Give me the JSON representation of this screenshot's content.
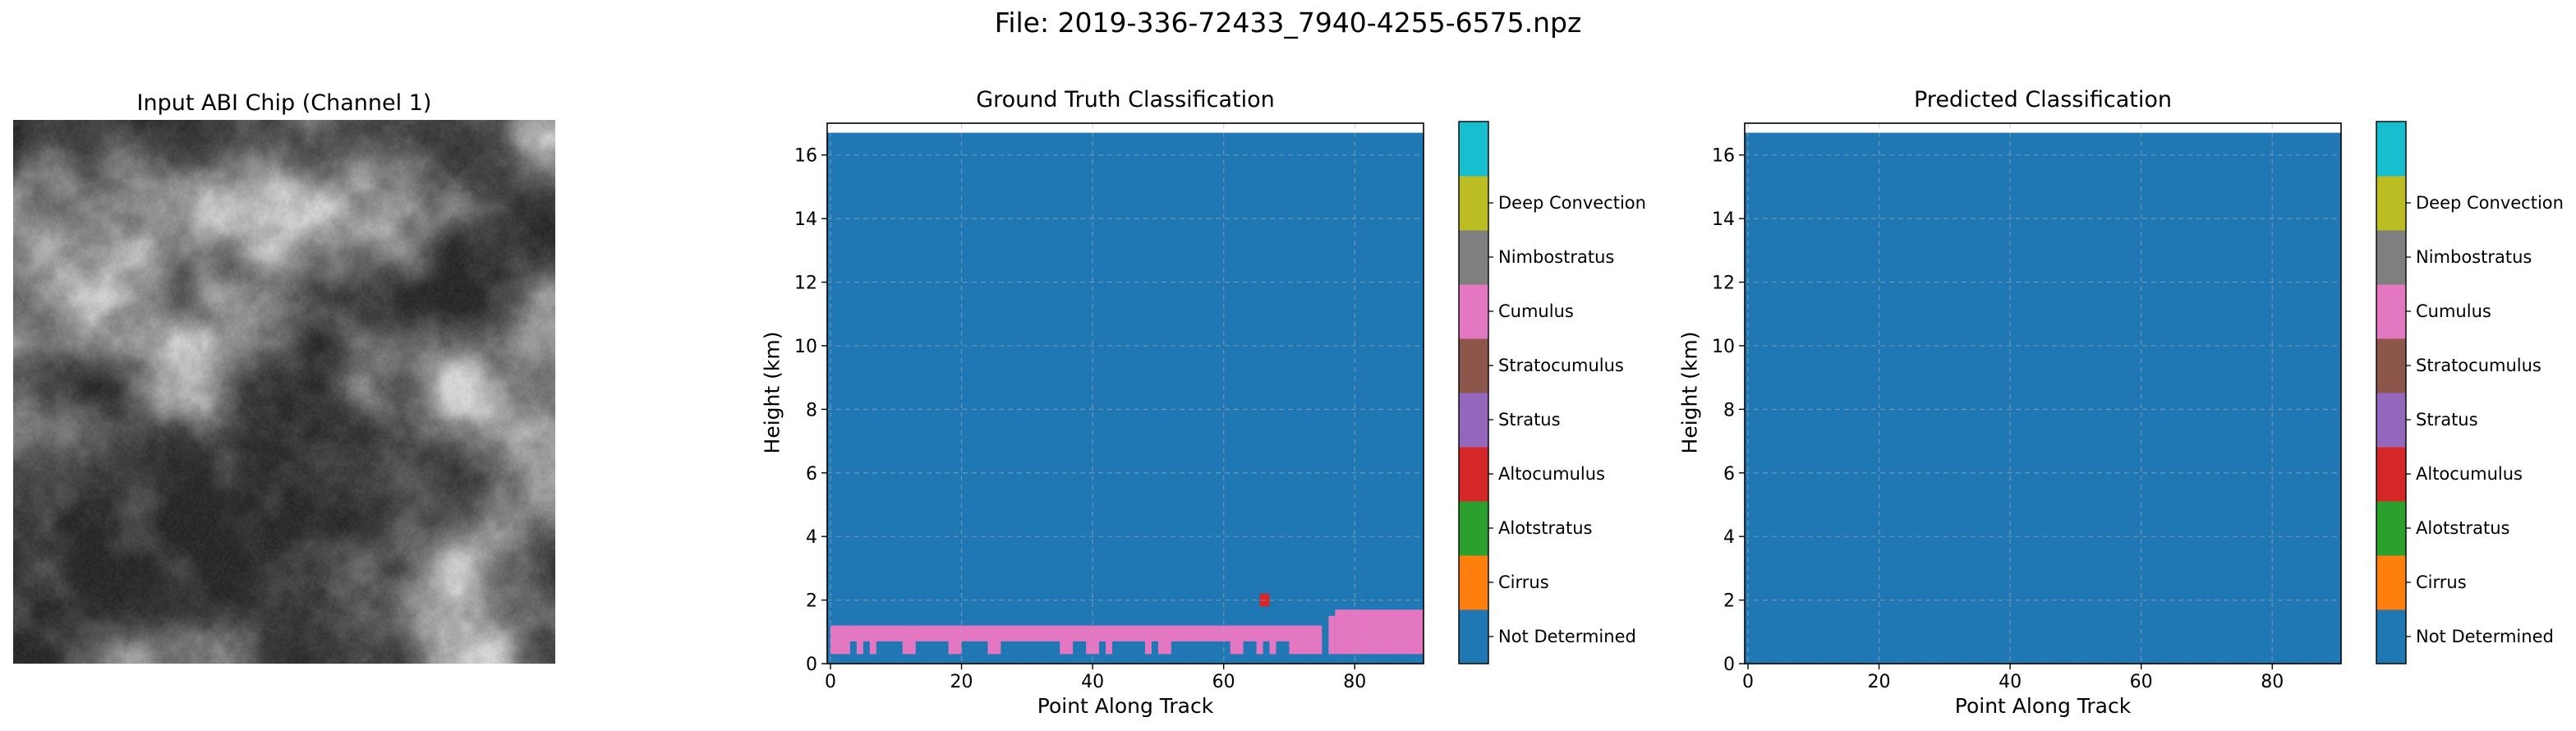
{
  "figure": {
    "suptitle": "File: 2019-336-72433_7940-4255-6575.npz"
  },
  "colors": {
    "class_colors": [
      "#1f77b4",
      "#ff7f0e",
      "#2ca02c",
      "#d62728",
      "#9467bd",
      "#8c564b",
      "#e377c2",
      "#7f7f7f",
      "#bcbd22",
      "#17becf"
    ],
    "grid": "#b0b0b0",
    "chip_dark": "#151515",
    "chip_light": "#e6e6e6"
  },
  "chip_panel": {
    "title": "Input ABI Chip (Channel 1)",
    "colormap": "gray"
  },
  "chart_data": [
    {
      "type": "heatmap",
      "title": "Ground Truth Classification",
      "xlabel": "Point Along Track",
      "ylabel": "Height (km)",
      "xlim": [
        -0.5,
        90.5
      ],
      "ylim": [
        0,
        17
      ],
      "xticks": [
        "0",
        "20",
        "40",
        "60",
        "80"
      ],
      "yticks": [
        "0",
        "2",
        "4",
        "6",
        "8",
        "10",
        "12",
        "14",
        "16"
      ],
      "grid": true,
      "background_class": "Not Determined",
      "top_of_data_km": 16.7,
      "classes": [
        "Not Determined",
        "Cirrus",
        "Alotstratus",
        "Altocumulus",
        "Stratus",
        "Stratocumulus",
        "Cumulus",
        "Nimbostratus",
        "Deep Convection"
      ],
      "layers": [
        {
          "class": "Stratocumulus",
          "x_start": 0,
          "x_end": 75,
          "y_bottom": 0.3,
          "y_top": 1.2
        },
        {
          "class": "Stratocumulus",
          "x_start": 76,
          "x_end": 77,
          "y_bottom": 0.3,
          "y_top": 1.5
        },
        {
          "class": "Stratocumulus",
          "x_start": 77,
          "x_end": 90.5,
          "y_bottom": 0.3,
          "y_top": 1.7
        },
        {
          "class": "Altocumulus",
          "x_start": 65.5,
          "x_end": 67,
          "y_bottom": 1.8,
          "y_top": 2.2
        }
      ],
      "gaps": [
        {
          "x_start": 3,
          "x_end": 4,
          "y_bottom": 0.3,
          "y_top": 0.7
        },
        {
          "x_start": 5,
          "x_end": 6,
          "y_bottom": 0.3,
          "y_top": 0.7
        },
        {
          "x_start": 7,
          "x_end": 11,
          "y_bottom": 0.3,
          "y_top": 0.7
        },
        {
          "x_start": 13,
          "x_end": 18,
          "y_bottom": 0.3,
          "y_top": 0.7
        },
        {
          "x_start": 20,
          "x_end": 24,
          "y_bottom": 0.3,
          "y_top": 0.7
        },
        {
          "x_start": 26,
          "x_end": 35,
          "y_bottom": 0.3,
          "y_top": 0.7
        },
        {
          "x_start": 37,
          "x_end": 39,
          "y_bottom": 0.3,
          "y_top": 0.7
        },
        {
          "x_start": 41,
          "x_end": 42,
          "y_bottom": 0.3,
          "y_top": 0.7
        },
        {
          "x_start": 43,
          "x_end": 48,
          "y_bottom": 0.3,
          "y_top": 0.7
        },
        {
          "x_start": 49,
          "x_end": 50,
          "y_bottom": 0.3,
          "y_top": 0.7
        },
        {
          "x_start": 52,
          "x_end": 61,
          "y_bottom": 0.3,
          "y_top": 0.7
        },
        {
          "x_start": 63,
          "x_end": 65,
          "y_bottom": 0.3,
          "y_top": 0.7
        },
        {
          "x_start": 66,
          "x_end": 67,
          "y_bottom": 0.3,
          "y_top": 0.7
        },
        {
          "x_start": 68,
          "x_end": 70,
          "y_bottom": 0.3,
          "y_top": 0.7
        }
      ]
    },
    {
      "type": "heatmap",
      "title": "Predicted Classification",
      "xlabel": "Point Along Track",
      "ylabel": "Height (km)",
      "xlim": [
        -0.5,
        90.5
      ],
      "ylim": [
        0,
        17
      ],
      "xticks": [
        "0",
        "20",
        "40",
        "60",
        "80"
      ],
      "yticks": [
        "0",
        "2",
        "4",
        "6",
        "8",
        "10",
        "12",
        "14",
        "16"
      ],
      "grid": true,
      "background_class": "Not Determined",
      "top_of_data_km": 16.7,
      "classes": [
        "Not Determined",
        "Cirrus",
        "Alotstratus",
        "Altocumulus",
        "Stratus",
        "Stratocumulus",
        "Cumulus",
        "Nimbostratus",
        "Deep Convection"
      ],
      "layers": [],
      "gaps": []
    }
  ],
  "colorbar": {
    "entries": [
      {
        "label": "Not Determined",
        "color": "#1f77b4"
      },
      {
        "label": "Cirrus",
        "color": "#ff7f0e"
      },
      {
        "label": "Alotstratus",
        "color": "#2ca02c"
      },
      {
        "label": "Altocumulus",
        "color": "#d62728"
      },
      {
        "label": "Stratus",
        "color": "#8c564b",
        "swatch_color": "#9467bd"
      },
      {
        "label": "Stratocumulus",
        "color": "#e377c2",
        "swatch_color": "#8c564b"
      },
      {
        "label": "Cumulus",
        "color": "#7f7f7f",
        "swatch_color": "#e377c2"
      },
      {
        "label": "Nimbostratus",
        "color": "#bcbd22",
        "swatch_color": "#7f7f7f"
      },
      {
        "label": "Deep Convection",
        "color": "#17becf",
        "swatch_color": "#bcbd22"
      }
    ],
    "extra_top_swatch": "#17becf"
  }
}
